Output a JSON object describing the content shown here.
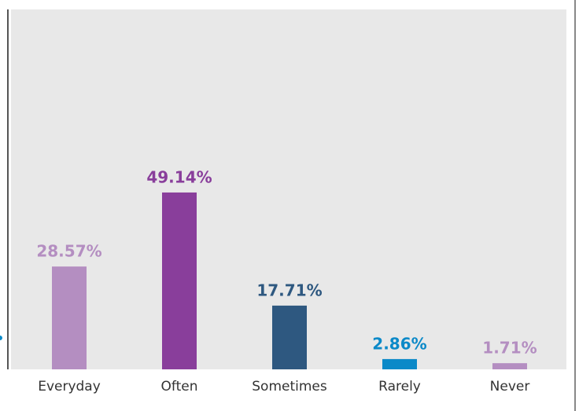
{
  "chart_data": {
    "type": "bar",
    "categories": [
      "Everyday",
      "Often",
      "Sometimes",
      "Rarely",
      "Never"
    ],
    "values": [
      28.57,
      49.14,
      17.71,
      2.86,
      1.71
    ],
    "value_labels": [
      "28.57%",
      "49.14%",
      "17.71%",
      "2.86%",
      "1.71%"
    ],
    "colors": [
      "#b48ec1",
      "#893e9b",
      "#2e5880",
      "#0b89c8",
      "#b48ec1"
    ],
    "ylim": [
      0,
      100
    ]
  }
}
